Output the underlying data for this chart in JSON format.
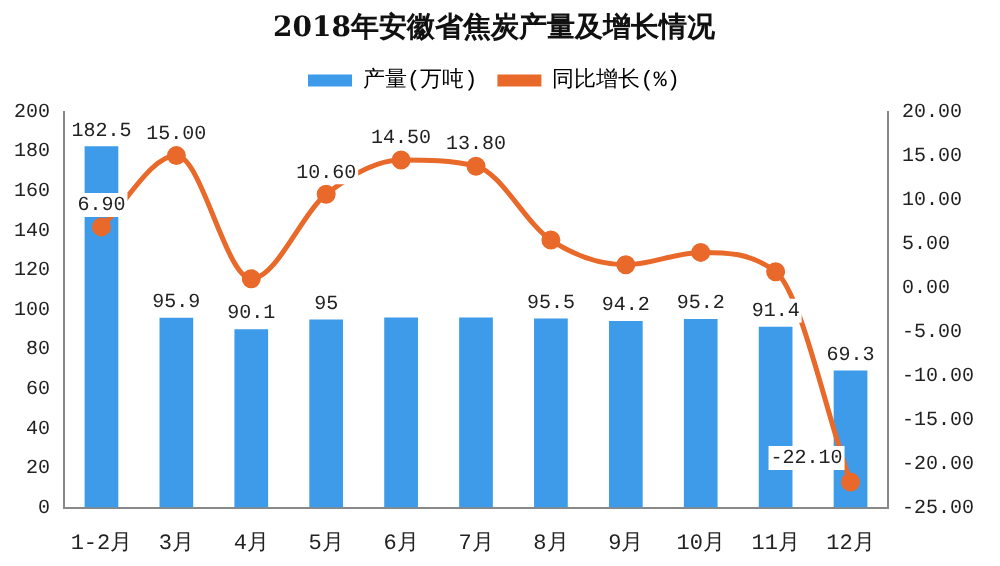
{
  "chart_data": {
    "type": "bar",
    "title": "2018年安徽省焦炭产量及增长情况",
    "categories": [
      "1-2月",
      "3月",
      "4月",
      "5月",
      "6月",
      "7月",
      "8月",
      "9月",
      "10月",
      "11月",
      "12月"
    ],
    "series": [
      {
        "name": "产量(万吨)",
        "color": "#3d9be9",
        "values": [
          182.5,
          95.9,
          90.1,
          95,
          96,
          96,
          95.5,
          94.2,
          95.2,
          91.4,
          69.3
        ],
        "value_labels": [
          "182.5",
          "95.9",
          "90.1",
          "95",
          null,
          null,
          "95.5",
          "94.2",
          "95.2",
          "91.4",
          "69.3"
        ]
      },
      {
        "name": "同比增长(%)",
        "type": "line",
        "axis": "y2",
        "color": "#e8692a",
        "marker": "circle",
        "values": [
          6.9,
          15,
          1,
          10.6,
          14.5,
          13.8,
          5.4,
          2.6,
          4,
          1.8,
          -22.1
        ],
        "value_labels": [
          "6.90",
          "15.00",
          null,
          "10.60",
          "14.50",
          "13.80",
          null,
          null,
          null,
          null,
          "-22.10"
        ]
      }
    ],
    "ylim": [
      0,
      200
    ],
    "yticks": [
      0,
      20,
      40,
      60,
      80,
      100,
      120,
      140,
      160,
      180,
      200
    ],
    "y2lim": [
      -25,
      20
    ],
    "y2ticks": [
      {
        "value": -25,
        "label": "-25.00"
      },
      {
        "value": -20,
        "label": "-20.00"
      },
      {
        "value": -15,
        "label": "-15.00"
      },
      {
        "value": -10,
        "label": "-10.00"
      },
      {
        "value": -5,
        "label": "-5.00"
      },
      {
        "value": 0,
        "label": "0.00"
      },
      {
        "value": 5,
        "label": "5.00"
      },
      {
        "value": 10,
        "label": "10.00"
      },
      {
        "value": 15,
        "label": "15.00"
      },
      {
        "value": 20,
        "label": "20.00"
      }
    ],
    "grid": false,
    "legend": "top"
  }
}
